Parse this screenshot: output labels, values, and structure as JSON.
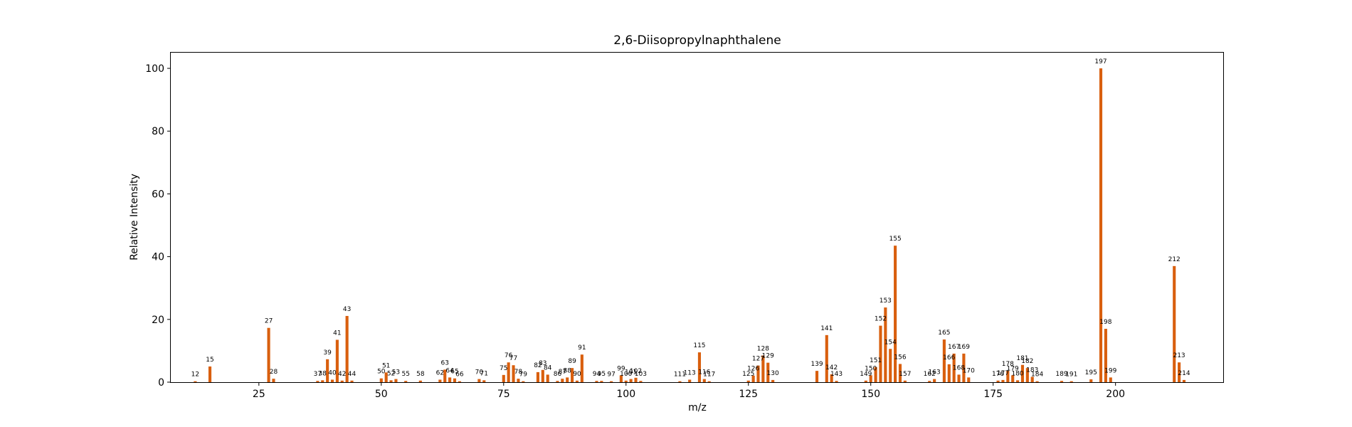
{
  "chart_data": {
    "type": "bar",
    "title": "2,6-Diisopropylnaphthalene",
    "xlabel": "m/z",
    "ylabel": "Relative Intensity",
    "xlim": [
      7,
      222
    ],
    "ylim": [
      0,
      105
    ],
    "xticks": [
      25,
      50,
      75,
      100,
      125,
      150,
      175,
      200
    ],
    "yticks": [
      0,
      20,
      40,
      60,
      80,
      100
    ],
    "bar_color": "#d95f0e",
    "grid": false,
    "peaks": [
      {
        "mz": 12,
        "intensity": 0.3,
        "label": "12"
      },
      {
        "mz": 15,
        "intensity": 5.0,
        "label": "15"
      },
      {
        "mz": 27,
        "intensity": 17.3,
        "label": "27"
      },
      {
        "mz": 28,
        "intensity": 1.1,
        "label": "28"
      },
      {
        "mz": 37,
        "intensity": 0.4,
        "label": "37"
      },
      {
        "mz": 38,
        "intensity": 0.6,
        "label": "38"
      },
      {
        "mz": 39,
        "intensity": 7.3,
        "label": "39"
      },
      {
        "mz": 40,
        "intensity": 0.8,
        "label": "40"
      },
      {
        "mz": 41,
        "intensity": 13.5,
        "label": "41"
      },
      {
        "mz": 42,
        "intensity": 0.5,
        "label": "42"
      },
      {
        "mz": 43,
        "intensity": 21.1,
        "label": "43"
      },
      {
        "mz": 44,
        "intensity": 0.5,
        "label": "44"
      },
      {
        "mz": 50,
        "intensity": 1.2,
        "label": "50"
      },
      {
        "mz": 51,
        "intensity": 3.1,
        "label": "51"
      },
      {
        "mz": 52,
        "intensity": 0.6,
        "label": "52"
      },
      {
        "mz": 53,
        "intensity": 1.0,
        "label": "53"
      },
      {
        "mz": 55,
        "intensity": 0.4,
        "label": "55"
      },
      {
        "mz": 58,
        "intensity": 0.5,
        "label": "58"
      },
      {
        "mz": 62,
        "intensity": 0.8,
        "label": "62"
      },
      {
        "mz": 63,
        "intensity": 4.0,
        "label": "63"
      },
      {
        "mz": 64,
        "intensity": 1.5,
        "label": "64"
      },
      {
        "mz": 65,
        "intensity": 1.2,
        "label": "65"
      },
      {
        "mz": 66,
        "intensity": 0.3,
        "label": "66"
      },
      {
        "mz": 70,
        "intensity": 1.0,
        "label": "70"
      },
      {
        "mz": 71,
        "intensity": 0.6,
        "label": "71"
      },
      {
        "mz": 75,
        "intensity": 2.3,
        "label": "75"
      },
      {
        "mz": 76,
        "intensity": 6.3,
        "label": "76"
      },
      {
        "mz": 77,
        "intensity": 5.4,
        "label": "77"
      },
      {
        "mz": 78,
        "intensity": 1.1,
        "label": "78"
      },
      {
        "mz": 79,
        "intensity": 0.3,
        "label": "79"
      },
      {
        "mz": 82,
        "intensity": 3.2,
        "label": "82"
      },
      {
        "mz": 83,
        "intensity": 3.9,
        "label": "83"
      },
      {
        "mz": 84,
        "intensity": 2.4,
        "label": "84"
      },
      {
        "mz": 86,
        "intensity": 0.4,
        "label": "86"
      },
      {
        "mz": 87,
        "intensity": 1.1,
        "label": "87"
      },
      {
        "mz": 88,
        "intensity": 1.5,
        "label": "88"
      },
      {
        "mz": 89,
        "intensity": 4.5,
        "label": "89"
      },
      {
        "mz": 90,
        "intensity": 0.5,
        "label": "90"
      },
      {
        "mz": 91,
        "intensity": 8.8,
        "label": "91"
      },
      {
        "mz": 94,
        "intensity": 0.4,
        "label": "94"
      },
      {
        "mz": 95,
        "intensity": 0.4,
        "label": "95"
      },
      {
        "mz": 97,
        "intensity": 0.3,
        "label": "97"
      },
      {
        "mz": 99,
        "intensity": 2.2,
        "label": "99"
      },
      {
        "mz": 100,
        "intensity": 0.5,
        "label": "100"
      },
      {
        "mz": 101,
        "intensity": 1.0,
        "label": "101"
      },
      {
        "mz": 102,
        "intensity": 1.4,
        "label": "102"
      },
      {
        "mz": 103,
        "intensity": 0.4,
        "label": "103"
      },
      {
        "mz": 111,
        "intensity": 0.3,
        "label": "111"
      },
      {
        "mz": 113,
        "intensity": 0.8,
        "label": "113"
      },
      {
        "mz": 115,
        "intensity": 9.5,
        "label": "115"
      },
      {
        "mz": 116,
        "intensity": 1.0,
        "label": "116"
      },
      {
        "mz": 117,
        "intensity": 0.3,
        "label": "117"
      },
      {
        "mz": 125,
        "intensity": 0.5,
        "label": "125"
      },
      {
        "mz": 126,
        "intensity": 2.1,
        "label": "126"
      },
      {
        "mz": 127,
        "intensity": 5.3,
        "label": "127"
      },
      {
        "mz": 128,
        "intensity": 8.5,
        "label": "128"
      },
      {
        "mz": 129,
        "intensity": 6.2,
        "label": "129"
      },
      {
        "mz": 130,
        "intensity": 0.7,
        "label": "130"
      },
      {
        "mz": 139,
        "intensity": 3.6,
        "label": "139"
      },
      {
        "mz": 141,
        "intensity": 15.0,
        "label": "141"
      },
      {
        "mz": 142,
        "intensity": 2.5,
        "label": "142"
      },
      {
        "mz": 143,
        "intensity": 0.4,
        "label": "143"
      },
      {
        "mz": 149,
        "intensity": 0.5,
        "label": "149"
      },
      {
        "mz": 150,
        "intensity": 2.2,
        "label": "150"
      },
      {
        "mz": 151,
        "intensity": 4.8,
        "label": "151"
      },
      {
        "mz": 152,
        "intensity": 18.0,
        "label": "152"
      },
      {
        "mz": 153,
        "intensity": 23.8,
        "label": "153"
      },
      {
        "mz": 154,
        "intensity": 10.6,
        "label": "154"
      },
      {
        "mz": 155,
        "intensity": 43.5,
        "label": "155"
      },
      {
        "mz": 156,
        "intensity": 5.8,
        "label": "156"
      },
      {
        "mz": 157,
        "intensity": 0.5,
        "label": "157"
      },
      {
        "mz": 162,
        "intensity": 0.4,
        "label": "162"
      },
      {
        "mz": 163,
        "intensity": 1.0,
        "label": "163"
      },
      {
        "mz": 165,
        "intensity": 13.6,
        "label": "165"
      },
      {
        "mz": 166,
        "intensity": 5.7,
        "label": "166"
      },
      {
        "mz": 167,
        "intensity": 9.1,
        "label": "167"
      },
      {
        "mz": 168,
        "intensity": 2.4,
        "label": "168"
      },
      {
        "mz": 169,
        "intensity": 9.1,
        "label": "169"
      },
      {
        "mz": 170,
        "intensity": 1.5,
        "label": "170"
      },
      {
        "mz": 176,
        "intensity": 0.5,
        "label": "176"
      },
      {
        "mz": 177,
        "intensity": 0.7,
        "label": "177"
      },
      {
        "mz": 178,
        "intensity": 3.6,
        "label": "178"
      },
      {
        "mz": 179,
        "intensity": 2.2,
        "label": "179"
      },
      {
        "mz": 180,
        "intensity": 0.6,
        "label": "180"
      },
      {
        "mz": 181,
        "intensity": 5.5,
        "label": "181"
      },
      {
        "mz": 182,
        "intensity": 4.5,
        "label": "182"
      },
      {
        "mz": 183,
        "intensity": 1.7,
        "label": "183"
      },
      {
        "mz": 184,
        "intensity": 0.3,
        "label": "184"
      },
      {
        "mz": 189,
        "intensity": 0.4,
        "label": "189"
      },
      {
        "mz": 191,
        "intensity": 0.3,
        "label": "191"
      },
      {
        "mz": 195,
        "intensity": 0.9,
        "label": "195"
      },
      {
        "mz": 197,
        "intensity": 100.0,
        "label": "197"
      },
      {
        "mz": 198,
        "intensity": 17.0,
        "label": "198"
      },
      {
        "mz": 199,
        "intensity": 1.5,
        "label": "199"
      },
      {
        "mz": 212,
        "intensity": 37.0,
        "label": "212"
      },
      {
        "mz": 213,
        "intensity": 6.3,
        "label": "213"
      },
      {
        "mz": 214,
        "intensity": 0.7,
        "label": "214"
      }
    ]
  }
}
